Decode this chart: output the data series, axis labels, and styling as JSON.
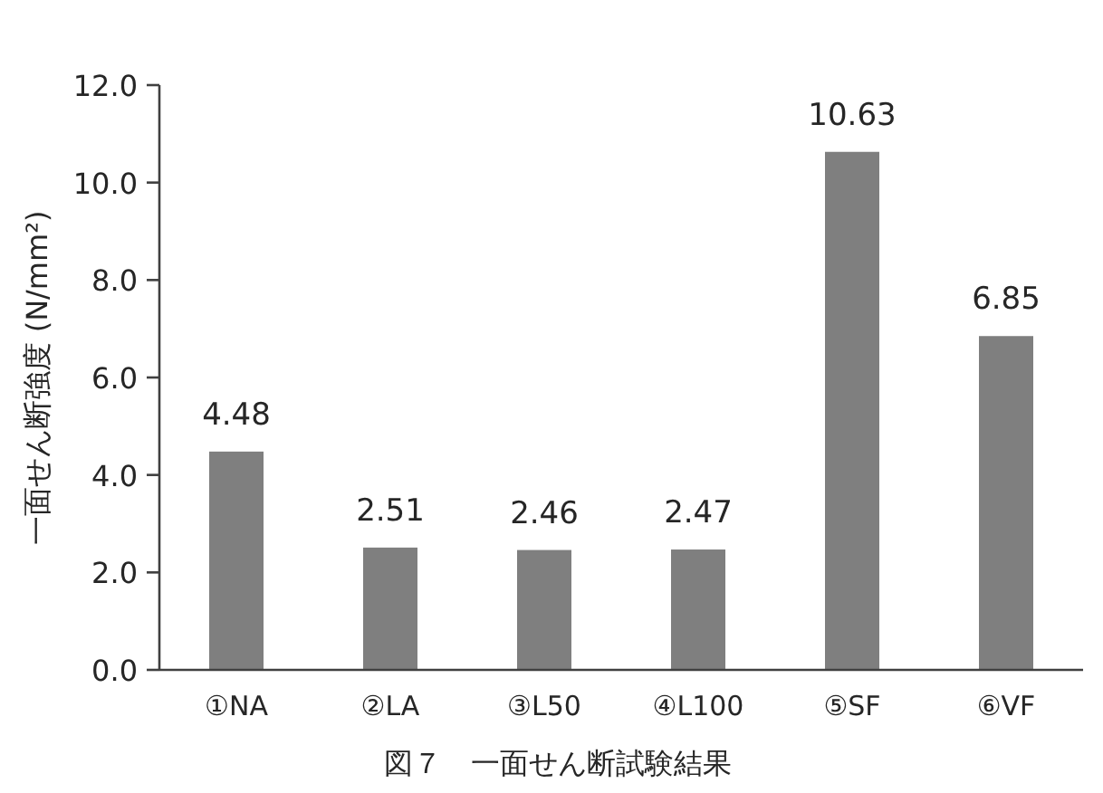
{
  "chart_data": {
    "type": "bar",
    "title": "図７　一面せん断試験結果",
    "ylabel": "一面せん断強度 (N/mm²)",
    "categories": [
      "①NA",
      "②LA",
      "③L50",
      "④L100",
      "⑤SF",
      "⑥VF"
    ],
    "values": [
      4.48,
      2.51,
      2.46,
      2.47,
      10.63,
      6.85
    ],
    "color": "#7f7f7f",
    "data_labels": true,
    "grid": false,
    "ylim": [
      0,
      12
    ],
    "yticks": [
      {
        "value": 0,
        "label": "0.0"
      },
      {
        "value": 2,
        "label": "2.0"
      },
      {
        "value": 4,
        "label": "4.0"
      },
      {
        "value": 6,
        "label": "6.0"
      },
      {
        "value": 8,
        "label": "8.0"
      },
      {
        "value": 10,
        "label": "10.0"
      },
      {
        "value": 12,
        "label": "12.0"
      }
    ]
  }
}
